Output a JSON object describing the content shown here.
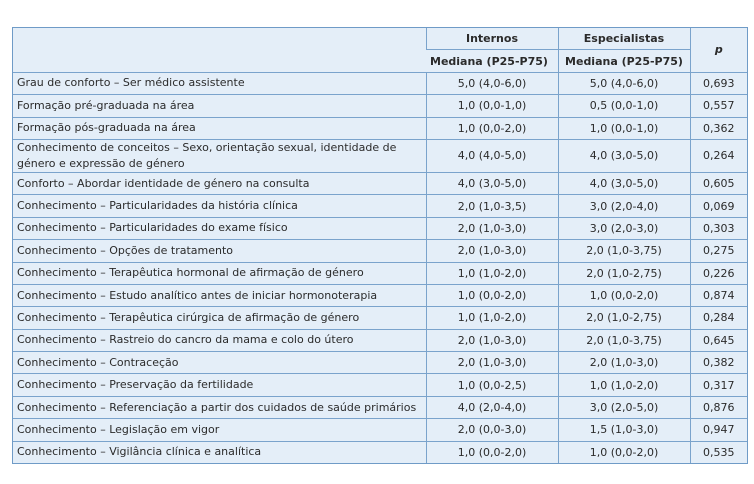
{
  "header": {
    "group1": "Internos",
    "group2": "Especialistas",
    "sub1": "Mediana (P25-P75)",
    "sub2": "Mediana (P25-P75)",
    "p": "p"
  },
  "table": {
    "rows": [
      [
        "Grau de conforto – Ser médico assistente",
        "5,0 (4,0-6,0)",
        "5,0 (4,0-6,0)",
        "0,693"
      ],
      [
        "Formação pré-graduada na área",
        "1,0 (0,0-1,0)",
        "0,5 (0,0-1,0)",
        "0,557"
      ],
      [
        "Formação pós-graduada na área",
        "1,0 (0,0-2,0)",
        "1,0 (0,0-1,0)",
        "0,362"
      ],
      [
        "Conhecimento de conceitos – Sexo, orientação sexual, identidade de género e expressão de género",
        "4,0 (4,0-5,0)",
        "4,0 (3,0-5,0)",
        "0,264"
      ],
      [
        "Conforto – Abordar identidade de género na consulta",
        "4,0 (3,0-5,0)",
        "4,0 (3,0-5,0)",
        "0,605"
      ],
      [
        "Conhecimento – Particularidades da história clínica",
        "2,0 (1,0-3,5)",
        "3,0 (2,0-4,0)",
        "0,069"
      ],
      [
        "Conhecimento – Particularidades do exame físico",
        "2,0 (1,0-3,0)",
        "3,0 (2,0-3,0)",
        "0,303"
      ],
      [
        "Conhecimento – Opções de tratamento",
        "2,0 (1,0-3,0)",
        "2,0 (1,0-3,75)",
        "0,275"
      ],
      [
        "Conhecimento – Terapêutica hormonal de afirmação de género",
        "1,0 (1,0-2,0)",
        "2,0 (1,0-2,75)",
        "0,226"
      ],
      [
        "Conhecimento – Estudo analítico antes de iniciar hormonoterapia",
        "1,0 (0,0-2,0)",
        "1,0 (0,0-2,0)",
        "0,874"
      ],
      [
        "Conhecimento – Terapêutica cirúrgica de afirmação de género",
        "1,0 (1,0-2,0)",
        "2,0 (1,0-2,75)",
        "0,284"
      ],
      [
        "Conhecimento – Rastreio do cancro da mama e colo do útero",
        "2,0 (1,0-3,0)",
        "2,0 (1,0-3,75)",
        "0,645"
      ],
      [
        "Conhecimento – Contraceção",
        "2,0 (1,0-3,0)",
        "2,0 (1,0-3,0)",
        "0,382"
      ],
      [
        "Conhecimento – Preservação da fertilidade",
        "1,0 (0,0-2,5)",
        "1,0 (1,0-2,0)",
        "0,317"
      ],
      [
        "Conhecimento – Referenciação a partir dos cuidados de saúde primários",
        "4,0 (2,0-4,0)",
        "3,0 (2,0-5,0)",
        "0,876"
      ],
      [
        "Conhecimento – Legislação em vigor",
        "2,0 (0,0-3,0)",
        "1,5 (1,0-3,0)",
        "0,947"
      ],
      [
        "Conhecimento – Vigilância clínica e analítica",
        "1,0 (0,0-2,0)",
        "1,0 (0,0-2,0)",
        "0,535"
      ]
    ]
  }
}
